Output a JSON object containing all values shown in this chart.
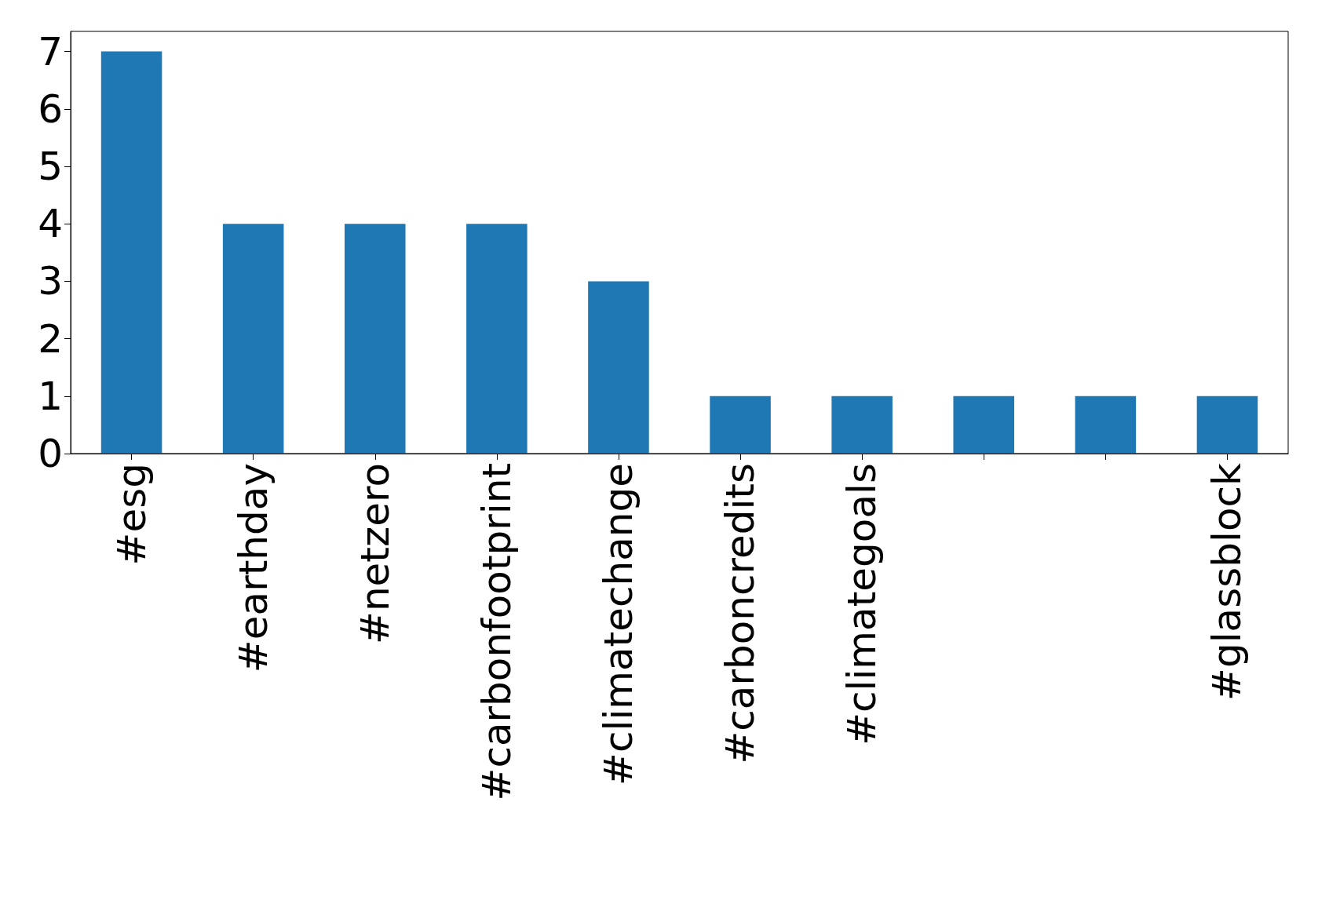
{
  "chart_data": {
    "type": "bar",
    "categories": [
      "#esg",
      "#earthday",
      "#netzero",
      "#carbonfootprint",
      "#climatechange",
      "#carboncredits",
      "#climategoals",
      null,
      null,
      "#glassblock"
    ],
    "values": [
      7,
      4,
      4,
      4,
      3,
      1,
      1,
      1,
      1,
      1
    ],
    "color": "#1f77b4",
    "ylim": [
      0,
      7.35
    ],
    "yticks": [
      0,
      1,
      2,
      3,
      4,
      5,
      6,
      7
    ]
  }
}
